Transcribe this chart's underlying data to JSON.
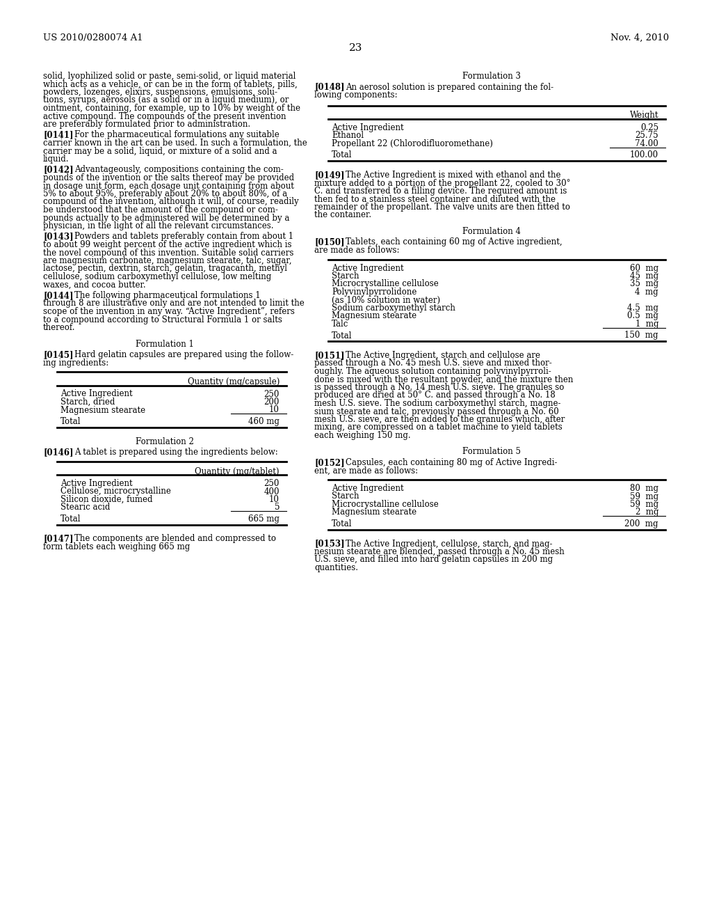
{
  "header_left": "US 2010/0280074 A1",
  "header_right": "Nov. 4, 2010",
  "page_number": "23",
  "background_color": "#ffffff",
  "font_size_body": 8.5,
  "font_size_header": 9.5,
  "font_size_page": 11,
  "table1_header": "Quantity (mg/capsule)",
  "table1_rows": [
    [
      "Active Ingredient",
      "250"
    ],
    [
      "Starch, dried",
      "200"
    ],
    [
      "Magnesium stearate",
      "10"
    ]
  ],
  "table1_total": "460 mg",
  "table2_header": "Quantity (mg/tablet)",
  "table2_rows": [
    [
      "Active Ingredient",
      "250"
    ],
    [
      "Cellulose, microcrystalline",
      "400"
    ],
    [
      "Silicon dioxide, fumed",
      "10"
    ],
    [
      "Stearic acid",
      "5"
    ]
  ],
  "table2_total": "665 mg",
  "table3_header": "Weight",
  "table3_rows": [
    [
      "Active Ingredient",
      "0.25"
    ],
    [
      "Ethanol",
      "25.75"
    ],
    [
      "Propellant 22 (Chlorodifluoromethane)",
      "74.00"
    ]
  ],
  "table3_total": "100.00",
  "table4_rows": [
    [
      "Active Ingredient",
      "60  mg"
    ],
    [
      "Starch",
      "45  mg"
    ],
    [
      "Microcrystalline cellulose",
      "35  mg"
    ],
    [
      "Polyvinylpyrrolidone",
      "4  mg"
    ],
    [
      "(as 10% solution in water)",
      ""
    ],
    [
      "Sodium carboxymethyl starch",
      "4.5  mg"
    ],
    [
      "Magnesium stearate",
      "0.5  mg"
    ],
    [
      "Talc",
      "1  mg"
    ]
  ],
  "table4_total": "150  mg",
  "table5_rows": [
    [
      "Active Ingredient",
      "80  mg"
    ],
    [
      "Starch",
      "59  mg"
    ],
    [
      "Microcrystalline cellulose",
      "59  mg"
    ],
    [
      "Magnesium stearate",
      "2  mg"
    ]
  ],
  "table5_total": "200  mg"
}
